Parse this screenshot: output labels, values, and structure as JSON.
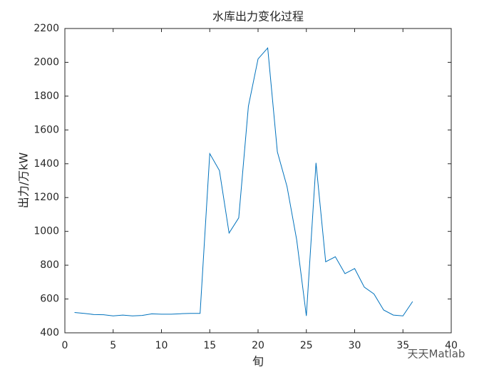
{
  "chart_data": {
    "type": "line",
    "title": "水库出力变化过程",
    "x_label": "旬",
    "y_label": "出力/万kW",
    "x": [
      1,
      2,
      3,
      4,
      5,
      6,
      7,
      8,
      9,
      10,
      11,
      12,
      13,
      14,
      15,
      16,
      17,
      18,
      19,
      20,
      21,
      22,
      23,
      24,
      25,
      26,
      27,
      28,
      29,
      30,
      31,
      32,
      33,
      34,
      35,
      36
    ],
    "series": [
      {
        "color": "#0072bd",
        "values": [
          520,
          515,
          508,
          507,
          500,
          505,
          500,
          503,
          512,
          510,
          510,
          513,
          515,
          515,
          1460,
          1360,
          990,
          1080,
          1740,
          2020,
          2085,
          1470,
          1265,
          950,
          500,
          1405,
          820,
          850,
          750,
          780,
          670,
          630,
          535,
          505,
          500,
          585
        ]
      }
    ],
    "xlim": [
      0,
      40
    ],
    "xticks": [
      0,
      5,
      10,
      15,
      20,
      25,
      30,
      35,
      40
    ],
    "ylim": [
      400,
      2200
    ],
    "yticks": [
      400,
      600,
      800,
      1000,
      1200,
      1400,
      1600,
      1800,
      2000,
      2200
    ],
    "watermark": "天天Matlab"
  }
}
